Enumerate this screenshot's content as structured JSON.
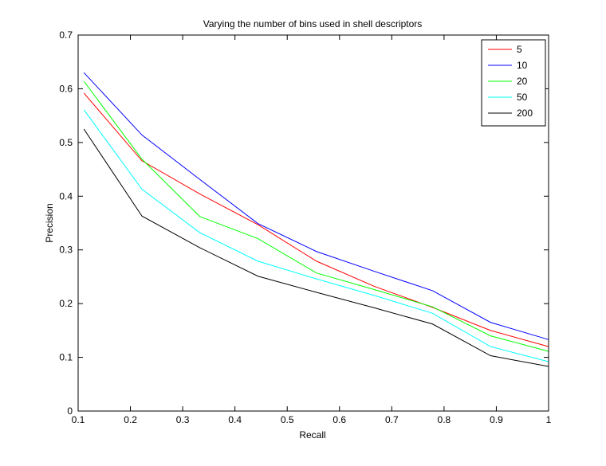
{
  "chart_data": {
    "type": "line",
    "title": "Varying the number of bins used in shell descriptors",
    "xlabel": "Recall",
    "ylabel": "Precision",
    "xlim": [
      0.1,
      1
    ],
    "ylim": [
      0,
      0.7
    ],
    "xticks": [
      0.1,
      0.2,
      0.3,
      0.4,
      0.5,
      0.6,
      0.7,
      0.8,
      0.9,
      1
    ],
    "xtick_labels": [
      "0.1",
      "0.2",
      "0.3",
      "0.4",
      "0.5",
      "0.6",
      "0.7",
      "0.8",
      "0.9",
      "1"
    ],
    "yticks": [
      0,
      0.1,
      0.2,
      0.3,
      0.4,
      0.5,
      0.6,
      0.7
    ],
    "ytick_labels": [
      "0",
      "0.1",
      "0.2",
      "0.3",
      "0.4",
      "0.5",
      "0.6",
      "0.7"
    ],
    "grid": false,
    "legend_position": "top-right",
    "x": [
      0.111,
      0.222,
      0.333,
      0.444,
      0.556,
      0.667,
      0.778,
      0.889,
      1.0
    ],
    "series": [
      {
        "name": "5",
        "color": "#ff0000",
        "values": [
          0.592,
          0.466,
          0.404,
          0.347,
          0.279,
          0.232,
          0.193,
          0.15,
          0.12
        ]
      },
      {
        "name": "10",
        "color": "#0000ff",
        "values": [
          0.63,
          0.514,
          0.431,
          0.349,
          0.297,
          0.26,
          0.224,
          0.165,
          0.133
        ]
      },
      {
        "name": "20",
        "color": "#00ff00",
        "values": [
          0.614,
          0.469,
          0.362,
          0.321,
          0.257,
          0.226,
          0.194,
          0.14,
          0.111
        ]
      },
      {
        "name": "50",
        "color": "#00ffff",
        "values": [
          0.561,
          0.413,
          0.332,
          0.279,
          0.246,
          0.215,
          0.182,
          0.12,
          0.092
        ]
      },
      {
        "name": "200",
        "color": "#000000",
        "values": [
          0.525,
          0.363,
          0.304,
          0.251,
          0.221,
          0.192,
          0.162,
          0.103,
          0.083
        ]
      }
    ]
  }
}
